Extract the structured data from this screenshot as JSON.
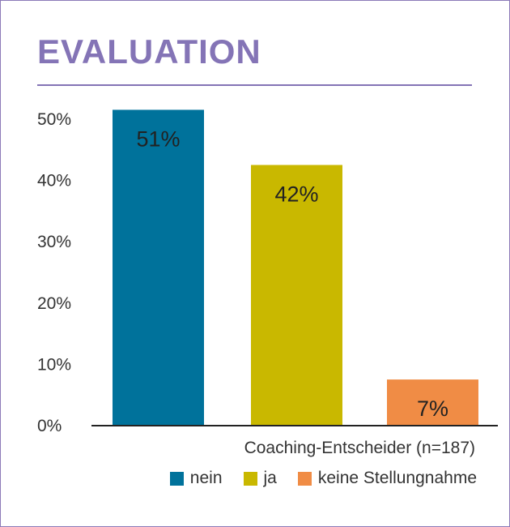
{
  "title": "EVALUATION",
  "caption": "Coaching-Entscheider (n=187)",
  "chart_data": {
    "type": "bar",
    "categories": [
      "nein",
      "ja",
      "keine Stellungnahme"
    ],
    "values": [
      51,
      42,
      7
    ],
    "data_labels": [
      "51%",
      "42%",
      "7%"
    ],
    "colors": [
      "#00729b",
      "#c9b800",
      "#f08c45"
    ],
    "yticks": [
      "0%",
      "10%",
      "20%",
      "30%",
      "40%",
      "50%"
    ],
    "ytick_values": [
      0,
      10,
      20,
      30,
      40,
      50
    ],
    "ylim": [
      0,
      50
    ],
    "grid": false,
    "legend_position": "bottom-right"
  }
}
